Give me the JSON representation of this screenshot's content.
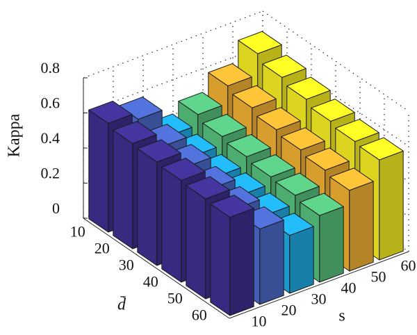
{
  "chart_data": {
    "type": "bar3",
    "zlabel": "Kappa",
    "xlabel": "d̄",
    "ylabel": "s",
    "xcategories": [
      10,
      20,
      30,
      40,
      50,
      60
    ],
    "ycategories": [
      10,
      20,
      30,
      40,
      50,
      60
    ],
    "series": [
      {
        "color": "#3d2f8f",
        "values": [
          0.62,
          0.6,
          0.59,
          0.58,
          0.57,
          0.56
        ]
      },
      {
        "color": "#4a68c6",
        "values": [
          0.58,
          0.52,
          0.5,
          0.47,
          0.45,
          0.43
        ]
      },
      {
        "color": "#1fa9e1",
        "values": [
          0.42,
          0.4,
          0.38,
          0.37,
          0.35,
          0.33
        ]
      },
      {
        "color": "#55bf7c",
        "values": [
          0.48,
          0.45,
          0.43,
          0.41,
          0.4,
          0.38
        ]
      },
      {
        "color": "#f0b032",
        "values": [
          0.58,
          0.55,
          0.52,
          0.5,
          0.48,
          0.46
        ]
      },
      {
        "color": "#f4ec22",
        "values": [
          0.7,
          0.66,
          0.63,
          0.6,
          0.58,
          0.57
        ]
      }
    ],
    "zlim": [
      0,
      0.8
    ],
    "zticks": [
      0,
      0.2,
      0.4,
      0.6,
      0.8
    ],
    "grid": true
  }
}
